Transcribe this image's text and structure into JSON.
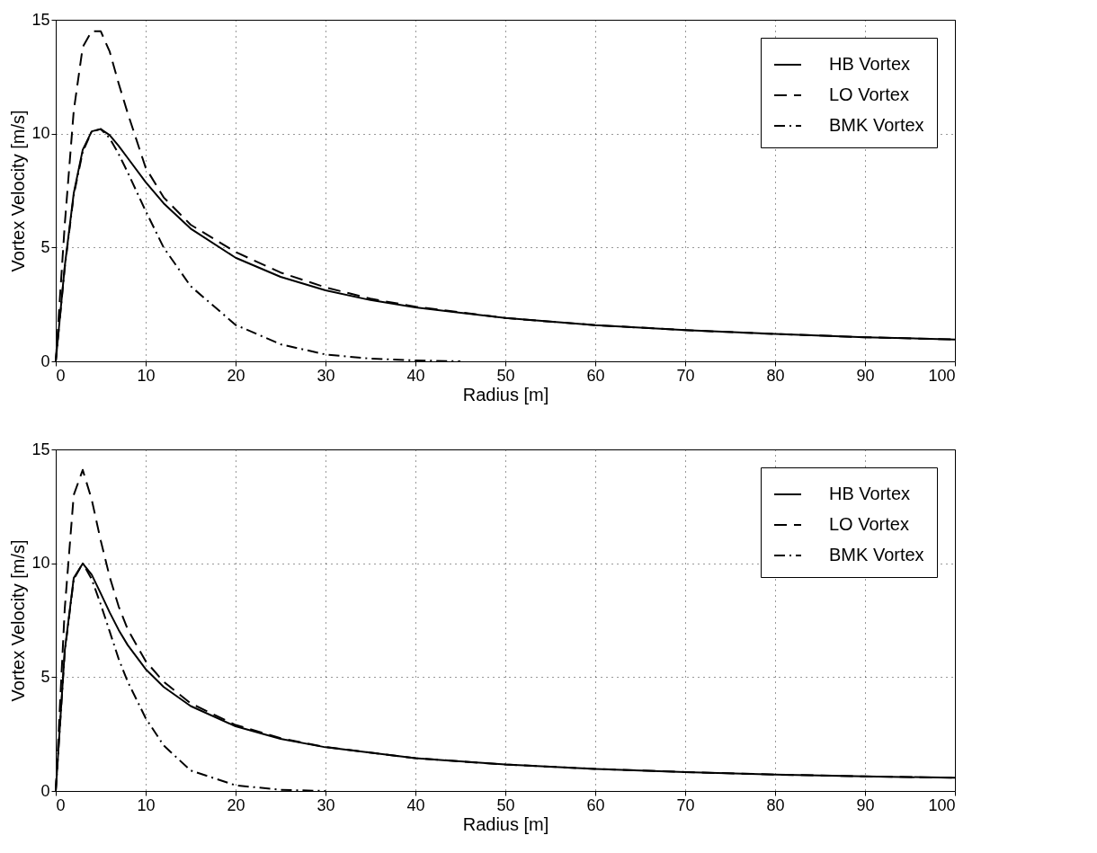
{
  "chart_data": [
    {
      "type": "line",
      "xlabel": "Radius [m]",
      "ylabel": "Vortex Velocity [m/s]",
      "xlim": [
        0,
        100
      ],
      "ylim": [
        0,
        15
      ],
      "xticks": [
        0,
        10,
        20,
        30,
        40,
        50,
        60,
        70,
        80,
        90,
        100
      ],
      "yticks": [
        0,
        5,
        10,
        15
      ],
      "grid": true,
      "legend": "top right",
      "marker": "none",
      "series": [
        {
          "name": "HB Vortex",
          "color": "#000000",
          "line_style": "solid",
          "x": [
            0,
            1,
            2,
            3,
            4,
            5,
            6,
            7,
            8,
            10,
            12,
            15,
            20,
            25,
            30,
            35,
            40,
            50,
            60,
            70,
            80,
            90,
            100
          ],
          "values": [
            0,
            4.17,
            7.38,
            9.29,
            10.1,
            10.2,
            9.93,
            9.46,
            8.93,
            7.87,
            6.94,
            5.83,
            4.55,
            3.71,
            3.12,
            2.69,
            2.37,
            1.9,
            1.59,
            1.37,
            1.2,
            1.06,
            0.96
          ]
        },
        {
          "name": "LO Vortex",
          "color": "#000000",
          "line_style": "dashed",
          "x": [
            0,
            1,
            2,
            3,
            4,
            5,
            6,
            7,
            8,
            10,
            12,
            15,
            20,
            25,
            30,
            35,
            40,
            50,
            60,
            70,
            80,
            90,
            100
          ],
          "values": [
            0,
            6,
            11,
            13.8,
            14.5,
            14.5,
            13.6,
            12.2,
            10.9,
            8.5,
            7.2,
            6,
            4.8,
            3.9,
            3.25,
            2.75,
            2.4,
            1.9,
            1.59,
            1.37,
            1.2,
            1.06,
            0.96
          ]
        },
        {
          "name": "BMK Vortex",
          "color": "#000000",
          "line_style": "dashdot",
          "x": [
            0,
            1,
            2,
            3,
            4,
            5,
            6,
            7,
            8,
            10,
            12,
            15,
            20,
            25,
            30,
            35,
            40,
            45
          ],
          "values": [
            0,
            4.1,
            7.3,
            9.2,
            10.1,
            10.2,
            9.8,
            9.1,
            8.3,
            6.6,
            5,
            3.3,
            1.6,
            0.75,
            0.3,
            0.12,
            0.04,
            0
          ]
        }
      ]
    },
    {
      "type": "line",
      "xlabel": "Radius [m]",
      "ylabel": "Vortex Velocity [m/s]",
      "xlim": [
        0,
        100
      ],
      "ylim": [
        0,
        15
      ],
      "xticks": [
        0,
        10,
        20,
        30,
        40,
        50,
        60,
        70,
        80,
        90,
        100
      ],
      "yticks": [
        0,
        5,
        10,
        15
      ],
      "grid": true,
      "legend": "top right",
      "marker": "none",
      "series": [
        {
          "name": "HB Vortex",
          "color": "#000000",
          "line_style": "solid",
          "x": [
            0,
            1,
            2,
            3,
            4,
            5,
            6,
            7,
            8,
            10,
            12,
            15,
            20,
            25,
            30,
            40,
            50,
            60,
            70,
            80,
            90,
            100
          ],
          "values": [
            0,
            6.16,
            9.35,
            9.99,
            9.5,
            8.68,
            7.84,
            7.07,
            6.41,
            5.35,
            4.57,
            3.73,
            2.84,
            2.29,
            1.92,
            1.44,
            1.16,
            0.97,
            0.83,
            0.72,
            0.64,
            0.58
          ]
        },
        {
          "name": "LO Vortex",
          "color": "#000000",
          "line_style": "dashed",
          "x": [
            0,
            1,
            2,
            3,
            4,
            5,
            6,
            7,
            8,
            10,
            12,
            15,
            20,
            25,
            30,
            40,
            50,
            60,
            70,
            80,
            90,
            100
          ],
          "values": [
            0,
            8,
            13,
            14.1,
            12.8,
            11,
            9.4,
            8.1,
            7.1,
            5.7,
            4.8,
            3.85,
            2.9,
            2.32,
            1.93,
            1.44,
            1.16,
            0.97,
            0.83,
            0.72,
            0.64,
            0.58
          ]
        },
        {
          "name": "BMK Vortex",
          "color": "#000000",
          "line_style": "dashdot",
          "x": [
            0,
            1,
            2,
            3,
            4,
            5,
            6,
            7,
            8,
            10,
            12,
            15,
            20,
            25,
            30
          ],
          "values": [
            0,
            6.1,
            9.3,
            10,
            9.3,
            8.2,
            7,
            5.8,
            4.8,
            3.2,
            2,
            0.9,
            0.25,
            0.05,
            0
          ]
        }
      ]
    }
  ]
}
